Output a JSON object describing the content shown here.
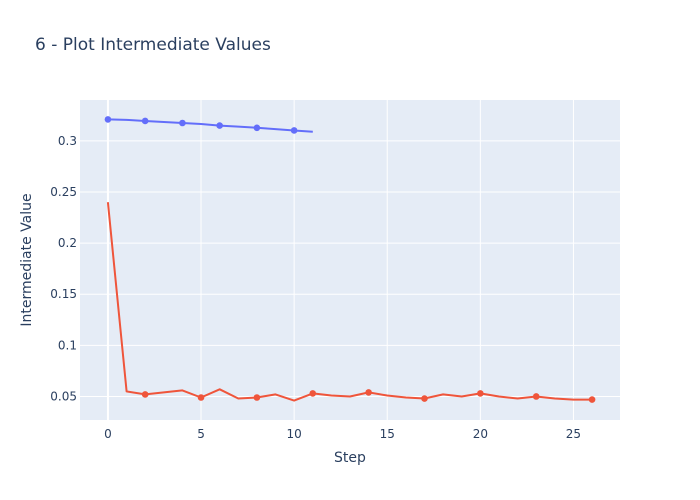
{
  "chart_data": {
    "type": "line",
    "title": "6 - Plot Intermediate Values",
    "xlabel": "Step",
    "ylabel": "Intermediate Value",
    "xlim": [
      -1.5,
      27.5
    ],
    "ylim": [
      0.027,
      0.34
    ],
    "x_ticks": [
      0,
      5,
      10,
      15,
      20,
      25
    ],
    "x_tick_labels": [
      "0",
      "5",
      "10",
      "15",
      "20",
      "25"
    ],
    "y_ticks": [
      0.05,
      0.1,
      0.15,
      0.2,
      0.25,
      0.3
    ],
    "y_tick_labels": [
      "0.05",
      "0.1",
      "0.15",
      "0.2",
      "0.25",
      "0.3"
    ],
    "grid": true,
    "legend": false,
    "series": [
      {
        "color": "#636efa",
        "x": [
          0,
          1,
          2,
          3,
          4,
          5,
          6,
          7,
          8,
          9,
          10,
          11
        ],
        "y": [
          0.321,
          0.3205,
          0.3195,
          0.3185,
          0.3175,
          0.3165,
          0.315,
          0.314,
          0.3128,
          0.3115,
          0.3102,
          0.309
        ],
        "marker_x": [
          0,
          2,
          4,
          6,
          8,
          10
        ]
      },
      {
        "color": "#ef553b",
        "x": [
          0,
          1,
          2,
          3,
          4,
          5,
          6,
          7,
          8,
          9,
          10,
          11,
          12,
          13,
          14,
          15,
          16,
          17,
          18,
          19,
          20,
          21,
          22,
          23,
          24,
          25,
          26
        ],
        "y": [
          0.24,
          0.055,
          0.052,
          0.054,
          0.056,
          0.049,
          0.057,
          0.048,
          0.049,
          0.052,
          0.046,
          0.053,
          0.051,
          0.05,
          0.054,
          0.051,
          0.049,
          0.048,
          0.052,
          0.05,
          0.053,
          0.05,
          0.048,
          0.05,
          0.048,
          0.047,
          0.047
        ],
        "marker_x": [
          2,
          5,
          8,
          11,
          14,
          17,
          20,
          23,
          26
        ]
      }
    ]
  }
}
